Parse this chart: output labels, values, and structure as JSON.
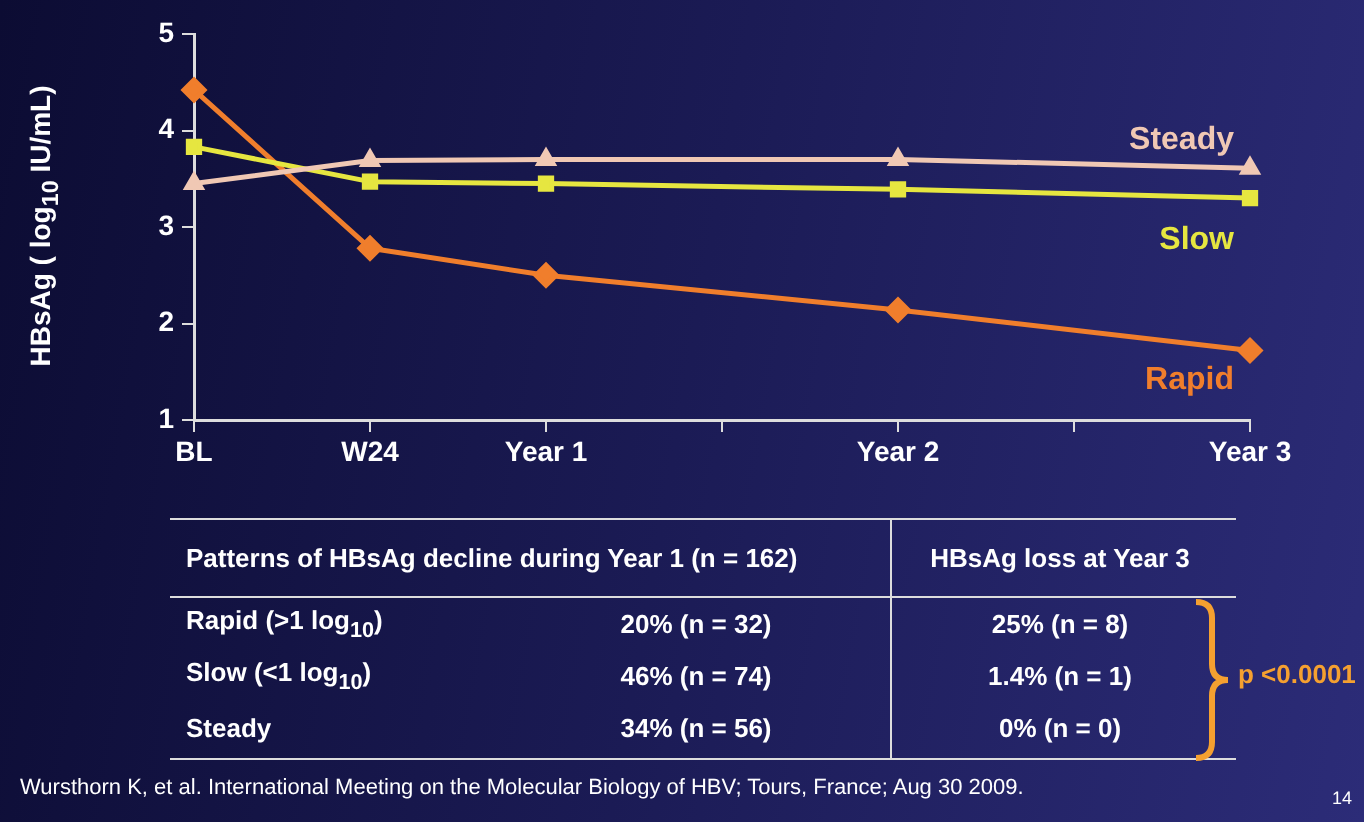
{
  "chart_data": [
    {
      "type": "line",
      "ylabel": "HBsAg ( log$_{10}$ IU/mL)",
      "categories": [
        "BL",
        "W24",
        "Year 1",
        null,
        "Year 2",
        null,
        "Year 3"
      ],
      "ylim": [
        1,
        5
      ],
      "yticks": [
        1,
        2,
        3,
        4,
        5
      ],
      "grid": false,
      "legend": false,
      "line_style": "solid",
      "series": [
        {
          "name": "Steady",
          "color": "#f0c8b4",
          "marker": "triangle",
          "values": [
            3.45,
            3.69,
            3.7,
            null,
            3.7,
            null,
            3.61
          ]
        },
        {
          "name": "Slow",
          "color": "#e6e640",
          "marker": "square",
          "values": [
            3.83,
            3.47,
            3.45,
            null,
            3.39,
            null,
            3.3
          ]
        },
        {
          "name": "Rapid",
          "color": "#f07e2c",
          "marker": "diamond",
          "values": [
            4.42,
            2.78,
            2.5,
            null,
            2.14,
            null,
            1.72
          ]
        }
      ],
      "annotations": [
        "Wursthorn K, et al. International Meeting on the Molecular Biology of HBV; Tours, France; Aug 30 2009.",
        "14"
      ]
    },
    {
      "type": "other",
      "annotations": [
        "Patterns of HBsAg decline during Year 1 (n = 162)",
        "HBsAg loss at Year 3",
        "Rapid (>1 log$_{10}$)",
        "20% (n = 32)",
        "25% (n = 8)",
        "Slow (<1 log$_{10}$)",
        "46% (n = 74)",
        "1.4% (n = 1)",
        "Steady",
        "34% (n = 56)",
        "0% (n = 0)",
        "p <0.0001"
      ]
    }
  ]
}
